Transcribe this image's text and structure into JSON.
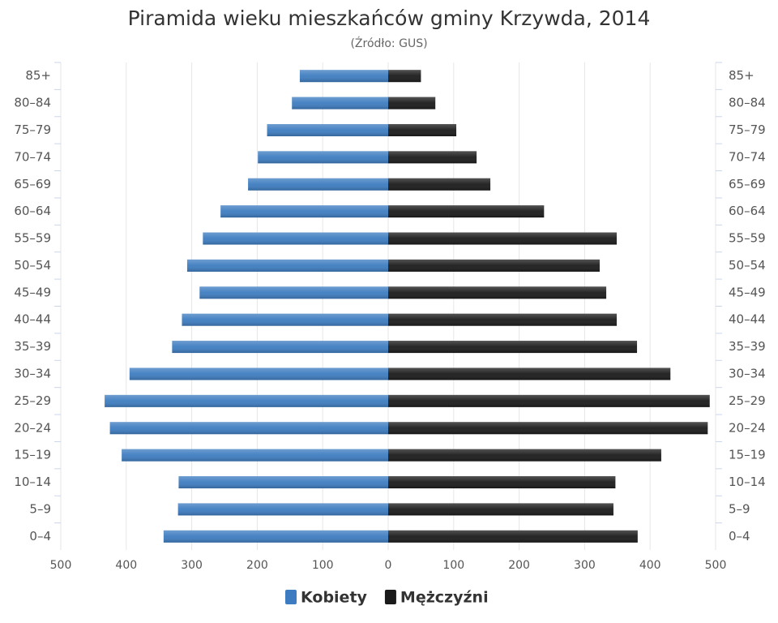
{
  "chart_data": {
    "type": "pyramid",
    "title": "Piramida wieku mieszkańców gminy Krzywda, 2014",
    "subtitle": "(Źródło: GUS)",
    "categories": [
      "85+",
      "80–84",
      "75–79",
      "70–74",
      "65–69",
      "60–64",
      "55–59",
      "50–54",
      "45–49",
      "40–44",
      "35–39",
      "30–34",
      "25–29",
      "20–24",
      "15–19",
      "10–14",
      "5–9",
      "0–4"
    ],
    "series": [
      {
        "name": "Kobiety",
        "color": "#3d7cc0",
        "values": [
          -135,
          -147,
          -185,
          -199,
          -214,
          -256,
          -283,
          -307,
          -288,
          -315,
          -330,
          -395,
          -433,
          -425,
          -407,
          -320,
          -321,
          -343
        ]
      },
      {
        "name": "Mężczyźni",
        "color": "#1a1a1a",
        "values": [
          50,
          72,
          104,
          135,
          156,
          238,
          349,
          323,
          333,
          349,
          380,
          431,
          491,
          488,
          417,
          347,
          344,
          381
        ]
      }
    ],
    "xlim": [
      -500,
      500
    ],
    "xticks": [
      {
        "value": -500,
        "label": "500"
      },
      {
        "value": -400,
        "label": "400"
      },
      {
        "value": -300,
        "label": "300"
      },
      {
        "value": -200,
        "label": "200"
      },
      {
        "value": -100,
        "label": "100"
      },
      0,
      100,
      200,
      300,
      400,
      500
    ],
    "grid": true
  }
}
